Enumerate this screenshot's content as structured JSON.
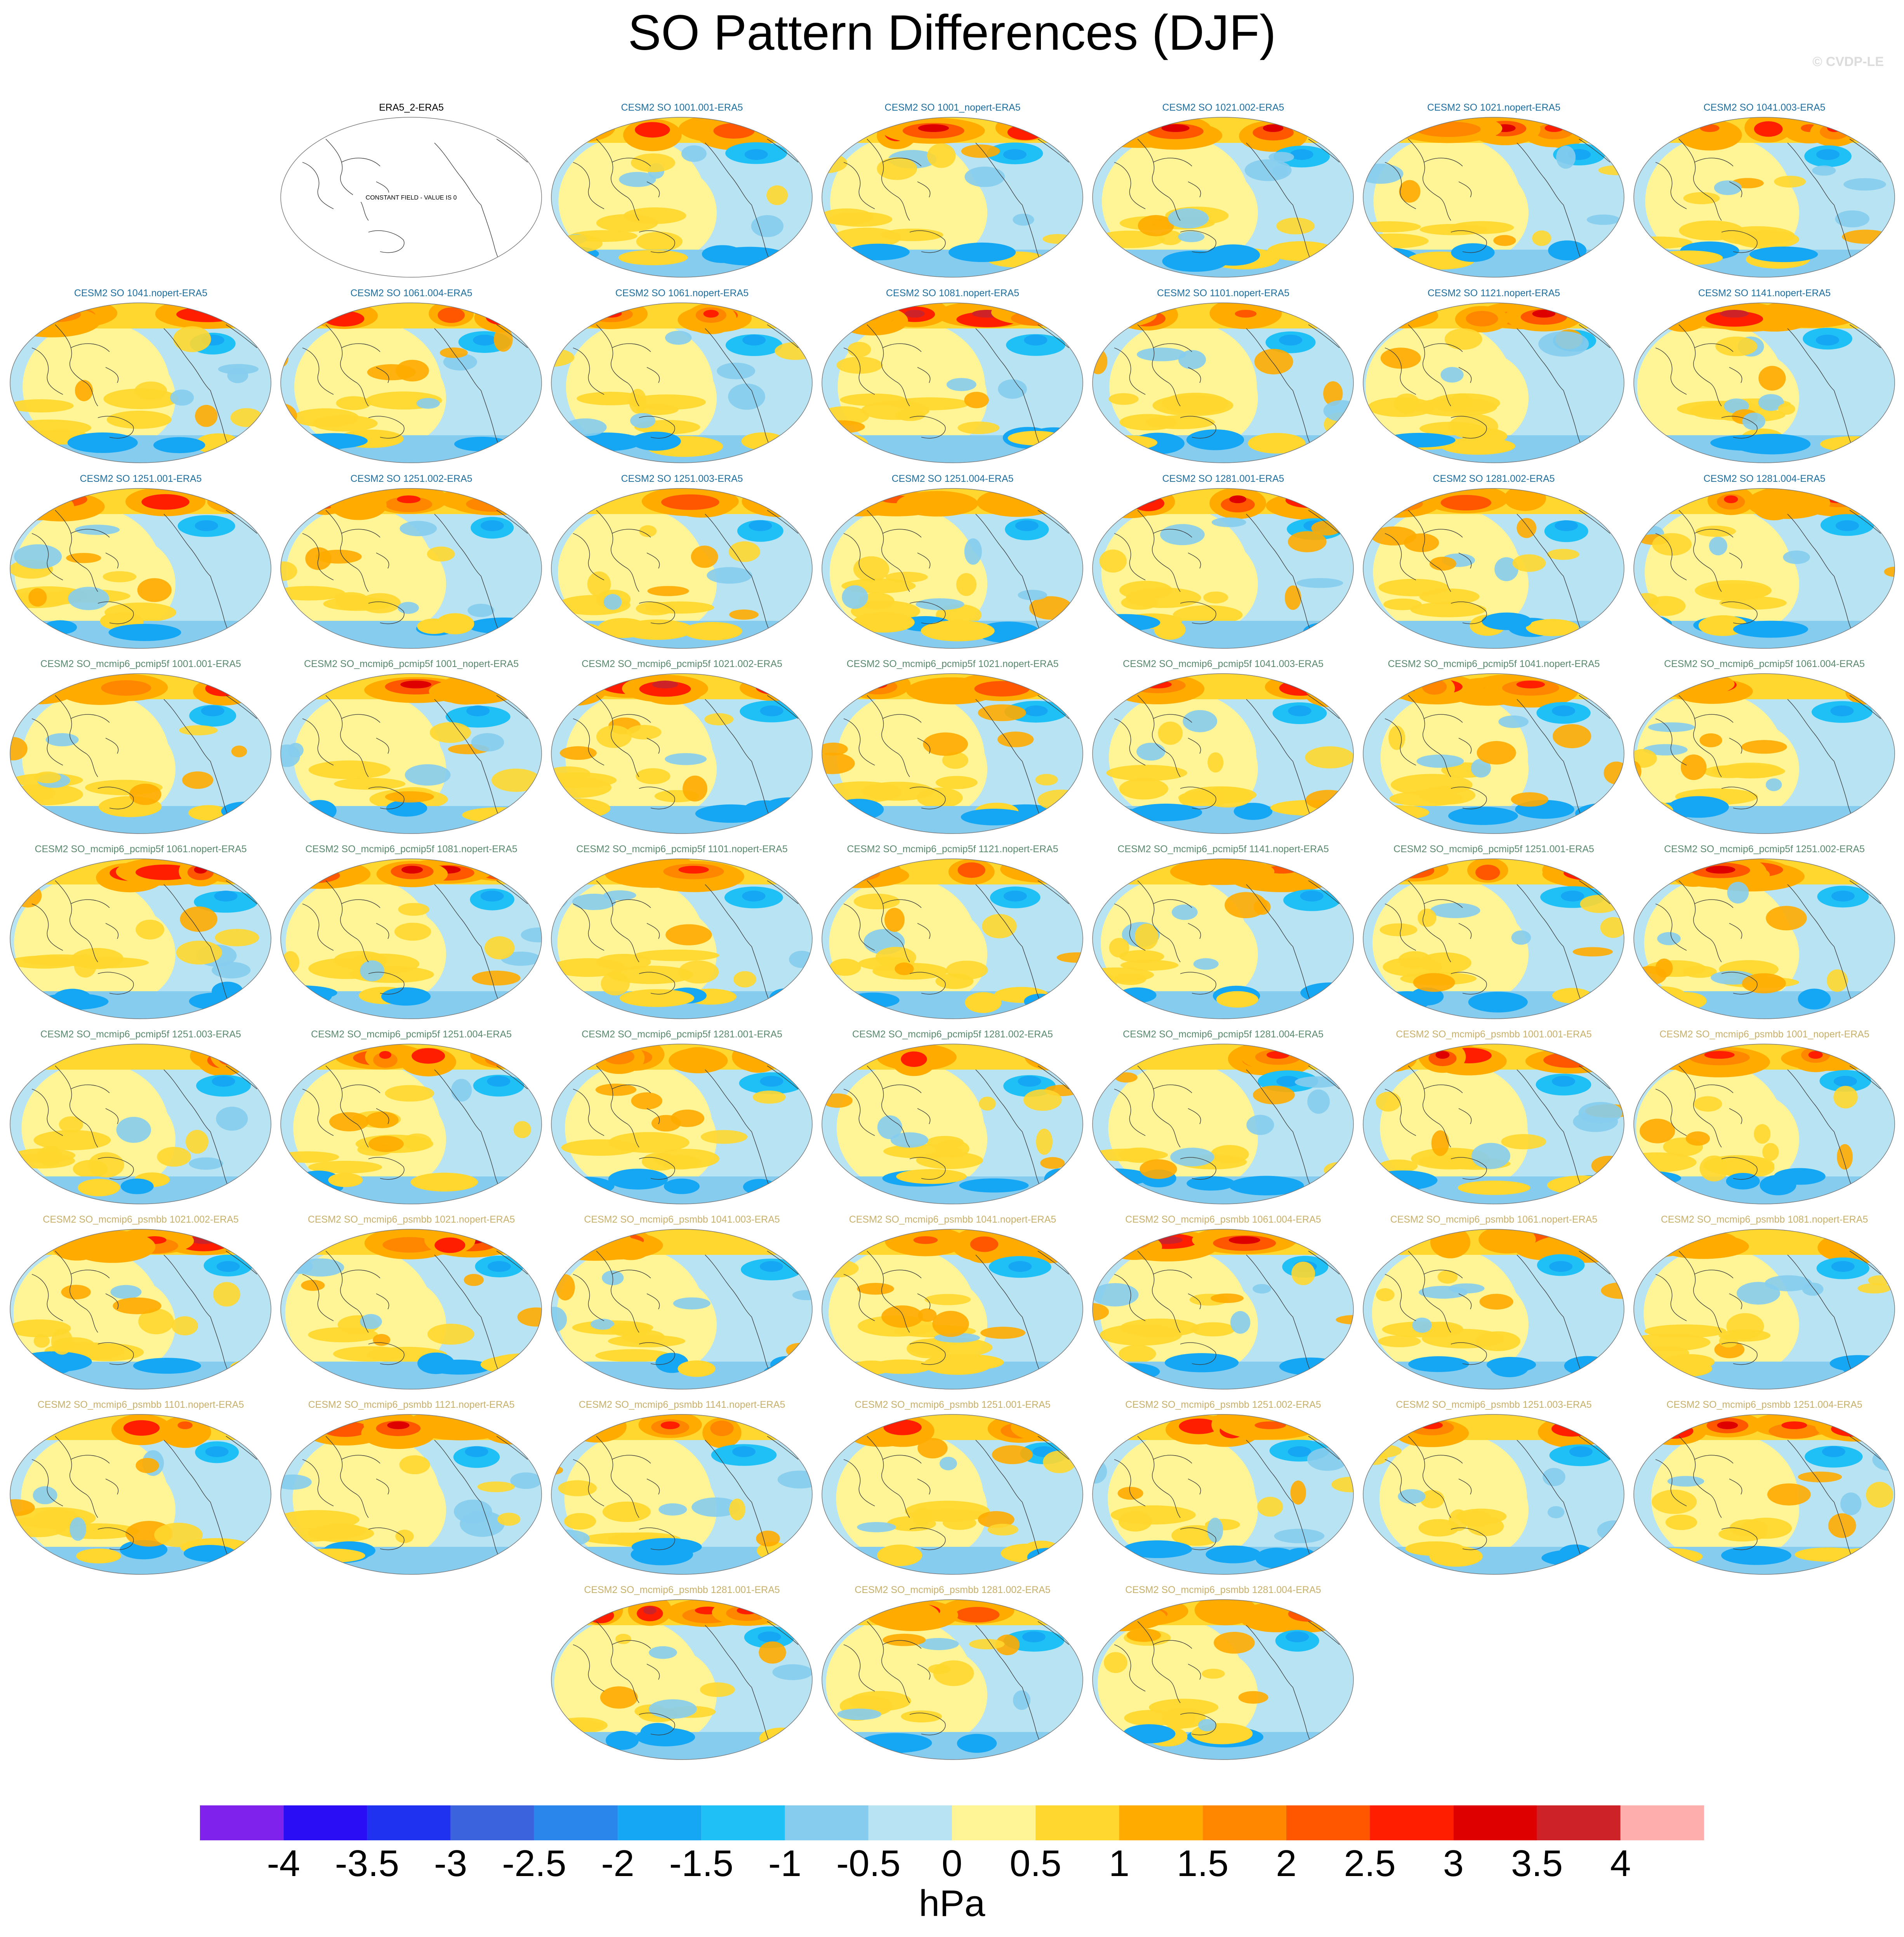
{
  "figure": {
    "title": "SO Pattern Differences (DJF)",
    "credit": "© CVDP-LE",
    "units": "hPa",
    "constant_field_label": "CONSTANT FIELD - VALUE IS 0"
  },
  "colors": {
    "group_cesm2_so": "#1e6fa0",
    "group_pcmip5f": "#5a8a6e",
    "group_psmbb": "#c8b06a",
    "reference": "#000000",
    "coastline": "#3a3a3a"
  },
  "colorbar": {
    "levels": [
      "-4",
      "-3.5",
      "-3",
      "-2.5",
      "-2",
      "-1.5",
      "-1",
      "-0.5",
      "0",
      "0.5",
      "1",
      "1.5",
      "2",
      "2.5",
      "3",
      "3.5",
      "4"
    ],
    "colors": [
      "#7e22ec",
      "#2a0cf5",
      "#1f32ef",
      "#3a63dd",
      "#2b86ec",
      "#15a7f3",
      "#1fc0f5",
      "#86ccee",
      "#b8e3f3",
      "#fff596",
      "#ffd72e",
      "#ffab00",
      "#ff8700",
      "#ff5700",
      "#ff1f00",
      "#de0000",
      "#cc2228",
      "#ffaeae"
    ]
  },
  "panels": [
    {
      "title": "ERA5_2-ERA5",
      "group": "reference",
      "constant": true
    },
    {
      "title": "CESM2 SO 1001.001-ERA5",
      "group": "cesm2_so"
    },
    {
      "title": "CESM2 SO 1001_nopert-ERA5",
      "group": "cesm2_so"
    },
    {
      "title": "CESM2 SO 1021.002-ERA5",
      "group": "cesm2_so"
    },
    {
      "title": "CESM2 SO 1021.nopert-ERA5",
      "group": "cesm2_so"
    },
    {
      "title": "CESM2 SO 1041.003-ERA5",
      "group": "cesm2_so"
    },
    {
      "title": "CESM2 SO 1041.nopert-ERA5",
      "group": "cesm2_so"
    },
    {
      "title": "CESM2 SO 1061.004-ERA5",
      "group": "cesm2_so"
    },
    {
      "title": "CESM2 SO 1061.nopert-ERA5",
      "group": "cesm2_so"
    },
    {
      "title": "CESM2 SO 1081.nopert-ERA5",
      "group": "cesm2_so"
    },
    {
      "title": "CESM2 SO 1101.nopert-ERA5",
      "group": "cesm2_so"
    },
    {
      "title": "CESM2 SO 1121.nopert-ERA5",
      "group": "cesm2_so"
    },
    {
      "title": "CESM2 SO 1141.nopert-ERA5",
      "group": "cesm2_so"
    },
    {
      "title": "CESM2 SO 1251.001-ERA5",
      "group": "cesm2_so"
    },
    {
      "title": "CESM2 SO 1251.002-ERA5",
      "group": "cesm2_so"
    },
    {
      "title": "CESM2 SO 1251.003-ERA5",
      "group": "cesm2_so"
    },
    {
      "title": "CESM2 SO 1251.004-ERA5",
      "group": "cesm2_so"
    },
    {
      "title": "CESM2 SO 1281.001-ERA5",
      "group": "cesm2_so"
    },
    {
      "title": "CESM2 SO 1281.002-ERA5",
      "group": "cesm2_so"
    },
    {
      "title": "CESM2 SO 1281.004-ERA5",
      "group": "cesm2_so"
    },
    {
      "title": "CESM2 SO_mcmip6_pcmip5f 1001.001-ERA5",
      "group": "pcmip5f"
    },
    {
      "title": "CESM2 SO_mcmip6_pcmip5f 1001_nopert-ERA5",
      "group": "pcmip5f"
    },
    {
      "title": "CESM2 SO_mcmip6_pcmip5f 1021.002-ERA5",
      "group": "pcmip5f"
    },
    {
      "title": "CESM2 SO_mcmip6_pcmip5f 1021.nopert-ERA5",
      "group": "pcmip5f"
    },
    {
      "title": "CESM2 SO_mcmip6_pcmip5f 1041.003-ERA5",
      "group": "pcmip5f"
    },
    {
      "title": "CESM2 SO_mcmip6_pcmip5f 1041.nopert-ERA5",
      "group": "pcmip5f"
    },
    {
      "title": "CESM2 SO_mcmip6_pcmip5f 1061.004-ERA5",
      "group": "pcmip5f"
    },
    {
      "title": "CESM2 SO_mcmip6_pcmip5f 1061.nopert-ERA5",
      "group": "pcmip5f"
    },
    {
      "title": "CESM2 SO_mcmip6_pcmip5f 1081.nopert-ERA5",
      "group": "pcmip5f"
    },
    {
      "title": "CESM2 SO_mcmip6_pcmip5f 1101.nopert-ERA5",
      "group": "pcmip5f"
    },
    {
      "title": "CESM2 SO_mcmip6_pcmip5f 1121.nopert-ERA5",
      "group": "pcmip5f"
    },
    {
      "title": "CESM2 SO_mcmip6_pcmip5f 1141.nopert-ERA5",
      "group": "pcmip5f"
    },
    {
      "title": "CESM2 SO_mcmip6_pcmip5f 1251.001-ERA5",
      "group": "pcmip5f"
    },
    {
      "title": "CESM2 SO_mcmip6_pcmip5f 1251.002-ERA5",
      "group": "pcmip5f"
    },
    {
      "title": "CESM2 SO_mcmip6_pcmip5f 1251.003-ERA5",
      "group": "pcmip5f"
    },
    {
      "title": "CESM2 SO_mcmip6_pcmip5f 1251.004-ERA5",
      "group": "pcmip5f"
    },
    {
      "title": "CESM2 SO_mcmip6_pcmip5f 1281.001-ERA5",
      "group": "pcmip5f"
    },
    {
      "title": "CESM2 SO_mcmip6_pcmip5f 1281.002-ERA5",
      "group": "pcmip5f"
    },
    {
      "title": "CESM2 SO_mcmip6_pcmip5f 1281.004-ERA5",
      "group": "pcmip5f"
    },
    {
      "title": "CESM2 SO_mcmip6_psmbb 1001.001-ERA5",
      "group": "psmbb"
    },
    {
      "title": "CESM2 SO_mcmip6_psmbb 1001_nopert-ERA5",
      "group": "psmbb"
    },
    {
      "title": "CESM2 SO_mcmip6_psmbb 1021.002-ERA5",
      "group": "psmbb"
    },
    {
      "title": "CESM2 SO_mcmip6_psmbb 1021.nopert-ERA5",
      "group": "psmbb"
    },
    {
      "title": "CESM2 SO_mcmip6_psmbb 1041.003-ERA5",
      "group": "psmbb"
    },
    {
      "title": "CESM2 SO_mcmip6_psmbb 1041.nopert-ERA5",
      "group": "psmbb"
    },
    {
      "title": "CESM2 SO_mcmip6_psmbb 1061.004-ERA5",
      "group": "psmbb"
    },
    {
      "title": "CESM2 SO_mcmip6_psmbb 1061.nopert-ERA5",
      "group": "psmbb"
    },
    {
      "title": "CESM2 SO_mcmip6_psmbb 1081.nopert-ERA5",
      "group": "psmbb"
    },
    {
      "title": "CESM2 SO_mcmip6_psmbb 1101.nopert-ERA5",
      "group": "psmbb"
    },
    {
      "title": "CESM2 SO_mcmip6_psmbb 1121.nopert-ERA5",
      "group": "psmbb"
    },
    {
      "title": "CESM2 SO_mcmip6_psmbb 1141.nopert-ERA5",
      "group": "psmbb"
    },
    {
      "title": "CESM2 SO_mcmip6_psmbb 1251.001-ERA5",
      "group": "psmbb"
    },
    {
      "title": "CESM2 SO_mcmip6_psmbb 1251.002-ERA5",
      "group": "psmbb"
    },
    {
      "title": "CESM2 SO_mcmip6_psmbb 1251.003-ERA5",
      "group": "psmbb"
    },
    {
      "title": "CESM2 SO_mcmip6_psmbb 1251.004-ERA5",
      "group": "psmbb"
    },
    {
      "title": "CESM2 SO_mcmip6_psmbb 1281.001-ERA5",
      "group": "psmbb"
    },
    {
      "title": "CESM2 SO_mcmip6_psmbb 1281.002-ERA5",
      "group": "psmbb"
    },
    {
      "title": "CESM2 SO_mcmip6_psmbb 1281.004-ERA5",
      "group": "psmbb"
    }
  ]
}
